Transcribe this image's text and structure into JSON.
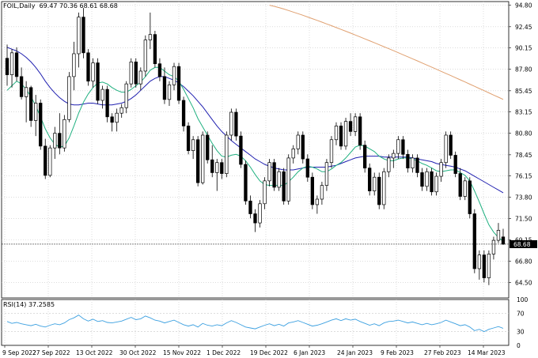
{
  "header": {
    "symbol": "FOIL,Daily",
    "ohlc": "69.47 70.36 68.61 68.68"
  },
  "rsi_header": {
    "label": "RSI(14)",
    "value": "37.2585"
  },
  "colors": {
    "ma_slow": "#e0a070",
    "ma_mid": "#2020b0",
    "ma_fast": "#20b080",
    "rsi_line": "#3ca0e0",
    "price_box": "#000000"
  },
  "chart_data": [
    {
      "type": "candlestick",
      "title": "FOIL,Daily",
      "ohlc_last": {
        "open": 69.47,
        "high": 70.36,
        "low": 68.61,
        "close": 68.68
      },
      "y_ticks": [
        64.5,
        66.8,
        69.15,
        71.5,
        73.8,
        76.15,
        78.45,
        80.8,
        83.15,
        85.45,
        87.8,
        90.15,
        92.45,
        94.8
      ],
      "ylim": [
        62.8,
        95.2
      ],
      "current_price": 68.68,
      "x_tick_labels": [
        "9 Sep 2022",
        "27 Sep 2022",
        "13 Oct 2022",
        "30 Oct 2022",
        "15 Nov 2022",
        "1 Dec 2022",
        "19 Dec 2022",
        "6 Jan 2023",
        "24 Jan 2023",
        "9 Feb 2023",
        "27 Feb 2023",
        "14 Mar 2023"
      ],
      "grid": true,
      "candles": [
        [
          89.0,
          90.5,
          86.0,
          87.2
        ],
        [
          87.2,
          90.0,
          85.8,
          89.6
        ],
        [
          89.6,
          90.2,
          86.5,
          87.0
        ],
        [
          87.0,
          88.0,
          84.5,
          84.8
        ],
        [
          84.8,
          86.5,
          82.0,
          85.8
        ],
        [
          85.8,
          86.0,
          81.5,
          82.2
        ],
        [
          82.2,
          85.0,
          80.5,
          84.1
        ],
        [
          84.1,
          84.5,
          79.0,
          79.4
        ],
        [
          79.4,
          80.2,
          75.8,
          76.2
        ],
        [
          76.2,
          79.5,
          76.0,
          79.2
        ],
        [
          79.2,
          81.5,
          78.0,
          80.8
        ],
        [
          80.8,
          83.0,
          78.5,
          79.2
        ],
        [
          79.2,
          82.8,
          78.8,
          82.3
        ],
        [
          82.3,
          87.5,
          82.0,
          87.0
        ],
        [
          87.0,
          90.8,
          85.5,
          89.5
        ],
        [
          89.5,
          94.0,
          88.0,
          93.5
        ],
        [
          93.5,
          94.5,
          89.0,
          89.6
        ],
        [
          89.6,
          90.0,
          86.0,
          86.5
        ],
        [
          86.5,
          89.0,
          85.8,
          88.5
        ],
        [
          88.5,
          89.0,
          84.0,
          84.4
        ],
        [
          84.4,
          86.0,
          83.5,
          85.6
        ],
        [
          85.6,
          86.0,
          82.0,
          82.6
        ],
        [
          82.6,
          83.0,
          81.0,
          82.0
        ],
        [
          82.0,
          83.5,
          81.0,
          83.0
        ],
        [
          83.0,
          84.0,
          82.5,
          83.6
        ],
        [
          83.6,
          86.5,
          83.0,
          86.2
        ],
        [
          86.2,
          89.0,
          85.8,
          88.6
        ],
        [
          88.6,
          89.0,
          85.8,
          86.2
        ],
        [
          86.2,
          88.0,
          85.5,
          87.6
        ],
        [
          87.6,
          91.5,
          87.0,
          91.0
        ],
        [
          91.0,
          94.0,
          90.0,
          91.6
        ],
        [
          91.6,
          92.0,
          88.0,
          88.4
        ],
        [
          88.4,
          89.0,
          86.5,
          87.0
        ],
        [
          87.0,
          88.0,
          84.0,
          84.5
        ],
        [
          84.5,
          86.5,
          83.8,
          86.1
        ],
        [
          86.1,
          88.5,
          85.5,
          88.1
        ],
        [
          88.1,
          88.5,
          84.0,
          84.4
        ],
        [
          84.4,
          84.8,
          81.0,
          81.6
        ],
        [
          81.6,
          82.0,
          78.5,
          78.9
        ],
        [
          78.9,
          80.5,
          78.0,
          80.1
        ],
        [
          80.1,
          80.5,
          75.0,
          75.4
        ],
        [
          75.4,
          81.0,
          75.2,
          80.6
        ],
        [
          80.6,
          81.0,
          77.5,
          77.9
        ],
        [
          77.9,
          79.5,
          76.0,
          76.5
        ],
        [
          76.5,
          78.0,
          74.5,
          77.6
        ],
        [
          77.6,
          78.0,
          75.8,
          76.4
        ],
        [
          76.4,
          81.0,
          76.0,
          80.6
        ],
        [
          80.6,
          83.5,
          80.0,
          83.1
        ],
        [
          83.1,
          83.5,
          80.0,
          80.5
        ],
        [
          80.5,
          81.0,
          77.0,
          77.4
        ],
        [
          77.4,
          77.8,
          73.0,
          73.4
        ],
        [
          73.4,
          74.0,
          71.5,
          72.0
        ],
        [
          72.0,
          72.5,
          70.0,
          71.0
        ],
        [
          71.0,
          73.5,
          70.5,
          73.1
        ],
        [
          73.1,
          76.0,
          72.5,
          75.6
        ],
        [
          75.6,
          78.0,
          75.0,
          77.6
        ],
        [
          77.6,
          78.0,
          74.5,
          74.9
        ],
        [
          74.9,
          77.0,
          74.5,
          76.6
        ],
        [
          76.6,
          77.0,
          73.0,
          73.4
        ],
        [
          73.4,
          78.5,
          73.0,
          78.1
        ],
        [
          78.1,
          79.5,
          77.5,
          79.1
        ],
        [
          79.1,
          81.0,
          78.5,
          80.6
        ],
        [
          80.6,
          81.0,
          77.5,
          78.0
        ],
        [
          78.0,
          78.5,
          75.5,
          76.0
        ],
        [
          76.0,
          76.5,
          72.5,
          73.0
        ],
        [
          73.0,
          74.0,
          72.0,
          73.6
        ],
        [
          73.6,
          75.5,
          73.0,
          75.1
        ],
        [
          75.1,
          78.0,
          74.5,
          77.6
        ],
        [
          77.6,
          80.5,
          77.0,
          80.1
        ],
        [
          80.1,
          82.0,
          79.5,
          81.6
        ],
        [
          81.6,
          82.0,
          79.0,
          79.4
        ],
        [
          79.4,
          82.5,
          79.0,
          82.1
        ],
        [
          82.1,
          83.0,
          80.5,
          81.0
        ],
        [
          81.0,
          83.0,
          80.5,
          82.6
        ],
        [
          82.6,
          83.0,
          79.0,
          79.5
        ],
        [
          79.5,
          80.0,
          76.5,
          77.0
        ],
        [
          77.0,
          77.5,
          74.0,
          74.5
        ],
        [
          74.5,
          76.5,
          74.0,
          76.0
        ],
        [
          76.0,
          76.5,
          72.5,
          73.0
        ],
        [
          73.0,
          77.0,
          72.5,
          76.6
        ],
        [
          76.6,
          78.5,
          76.0,
          78.1
        ],
        [
          78.1,
          79.0,
          77.0,
          78.6
        ],
        [
          78.6,
          80.5,
          78.0,
          80.1
        ],
        [
          80.1,
          80.5,
          78.0,
          78.5
        ],
        [
          78.5,
          79.0,
          76.5,
          77.0
        ],
        [
          77.0,
          78.5,
          76.5,
          78.1
        ],
        [
          78.1,
          78.5,
          76.0,
          76.5
        ],
        [
          76.5,
          77.0,
          74.5,
          75.0
        ],
        [
          75.0,
          77.0,
          74.5,
          76.6
        ],
        [
          76.6,
          77.0,
          74.0,
          74.4
        ],
        [
          74.4,
          76.5,
          74.0,
          76.1
        ],
        [
          76.1,
          78.0,
          75.5,
          77.6
        ],
        [
          77.6,
          81.0,
          77.0,
          80.6
        ],
        [
          80.6,
          81.0,
          78.0,
          78.4
        ],
        [
          78.4,
          78.8,
          76.0,
          76.4
        ],
        [
          76.4,
          77.0,
          73.5,
          73.9
        ],
        [
          73.9,
          76.0,
          73.5,
          75.6
        ],
        [
          75.6,
          76.0,
          71.5,
          72.0
        ],
        [
          72.0,
          72.5,
          65.5,
          66.0
        ],
        [
          66.0,
          68.0,
          64.8,
          67.5
        ],
        [
          67.5,
          68.0,
          64.5,
          65.0
        ],
        [
          65.0,
          68.0,
          64.2,
          67.6
        ],
        [
          67.6,
          69.5,
          67.0,
          69.1
        ],
        [
          69.1,
          71.0,
          68.8,
          70.2
        ],
        [
          69.47,
          70.36,
          68.61,
          68.68
        ]
      ],
      "ma_fast": [
        85.5,
        86.0,
        86.5,
        86.2,
        85.6,
        84.8,
        83.8,
        82.6,
        81.3,
        80.3,
        79.6,
        79.3,
        79.4,
        80.3,
        81.6,
        83.0,
        84.2,
        85.1,
        85.8,
        86.3,
        86.4,
        86.2,
        85.8,
        85.5,
        85.3,
        85.3,
        85.6,
        86.0,
        86.4,
        87.0,
        87.7,
        88.0,
        88.0,
        87.6,
        87.2,
        87.0,
        86.5,
        85.6,
        84.6,
        83.6,
        82.4,
        81.5,
        80.6,
        79.7,
        78.9,
        78.3,
        78.2,
        78.4,
        78.5,
        78.3,
        77.8,
        77.1,
        76.3,
        75.6,
        75.2,
        75.1,
        75.1,
        75.1,
        75.1,
        75.5,
        76.0,
        76.6,
        77.0,
        77.2,
        77.1,
        76.9,
        76.6,
        76.6,
        76.9,
        77.3,
        77.6,
        78.1,
        78.7,
        79.3,
        79.5,
        79.4,
        79.1,
        78.8,
        78.3,
        78.0,
        77.8,
        77.8,
        78.0,
        78.1,
        78.1,
        78.0,
        77.8,
        77.5,
        77.3,
        77.0,
        76.7,
        76.6,
        76.7,
        76.8,
        76.8,
        76.5,
        76.2,
        75.6,
        74.5,
        73.3,
        72.0,
        70.8,
        70.0,
        69.4,
        69.0
      ],
      "ma_mid": [
        90.2,
        90.0,
        89.8,
        89.5,
        89.1,
        88.6,
        88.0,
        87.3,
        86.5,
        85.8,
        85.2,
        84.7,
        84.3,
        84.0,
        83.9,
        83.9,
        84.0,
        84.1,
        84.1,
        84.0,
        83.9,
        83.9,
        83.9,
        84.0,
        84.1,
        84.3,
        84.6,
        85.0,
        85.5,
        86.0,
        86.5,
        86.8,
        87.0,
        87.0,
        86.8,
        86.6,
        86.3,
        85.9,
        85.4,
        84.9,
        84.3,
        83.7,
        83.0,
        82.3,
        81.6,
        81.0,
        80.5,
        80.0,
        79.6,
        79.2,
        78.8,
        78.4,
        78.0,
        77.7,
        77.4,
        77.2,
        77.0,
        76.9,
        76.8,
        76.8,
        76.8,
        76.9,
        77.0,
        77.1,
        77.1,
        77.1,
        77.1,
        77.1,
        77.2,
        77.3,
        77.5,
        77.7,
        77.9,
        78.1,
        78.2,
        78.3,
        78.3,
        78.3,
        78.3,
        78.2,
        78.2,
        78.2,
        78.2,
        78.2,
        78.2,
        78.1,
        78.0,
        77.9,
        77.8,
        77.7,
        77.5,
        77.4,
        77.3,
        77.2,
        77.1,
        76.9,
        76.7,
        76.4,
        76.1,
        75.8,
        75.5,
        75.2,
        74.9,
        74.6,
        74.3
      ],
      "ma_slow_segment": {
        "start_index": 55,
        "values_start": 94.8,
        "values_end": 84.5
      },
      "rsi": [
        52,
        48,
        50,
        47,
        45,
        43,
        46,
        42,
        40,
        44,
        47,
        45,
        49,
        56,
        60,
        66,
        58,
        53,
        57,
        52,
        54,
        50,
        49,
        51,
        53,
        57,
        61,
        56,
        58,
        64,
        60,
        55,
        53,
        49,
        52,
        55,
        50,
        45,
        42,
        45,
        40,
        48,
        44,
        42,
        45,
        43,
        49,
        54,
        50,
        45,
        40,
        38,
        36,
        40,
        44,
        47,
        43,
        46,
        42,
        49,
        51,
        54,
        50,
        46,
        42,
        44,
        47,
        51,
        55,
        58,
        54,
        58,
        55,
        57,
        52,
        48,
        44,
        47,
        43,
        49,
        52,
        53,
        55,
        52,
        49,
        51,
        48,
        45,
        48,
        45,
        47,
        50,
        55,
        51,
        47,
        43,
        45,
        40,
        32,
        35,
        30,
        35,
        38,
        41,
        37
      ]
    }
  ]
}
